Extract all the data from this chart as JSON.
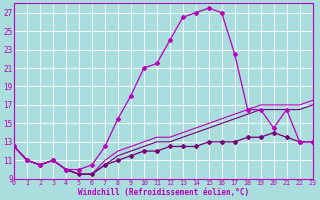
{
  "xlabel": "Windchill (Refroidissement éolien,°C)",
  "bg_color": "#aadddd",
  "grid_color": "#ffffff",
  "line_color": "#bb00bb",
  "line_color_dark": "#770077",
  "xmin": 0,
  "xmax": 23,
  "ymin": 9,
  "ymax": 28,
  "yticks": [
    9,
    11,
    13,
    15,
    17,
    19,
    21,
    23,
    25,
    27
  ],
  "xticks": [
    0,
    1,
    2,
    3,
    4,
    5,
    6,
    7,
    8,
    9,
    10,
    11,
    12,
    13,
    14,
    15,
    16,
    17,
    18,
    19,
    20,
    21,
    22,
    23
  ],
  "curve1_x": [
    0,
    1,
    2,
    3,
    4,
    5,
    6,
    7,
    8,
    9,
    10,
    11,
    12,
    13,
    14,
    15,
    16,
    17,
    18,
    19,
    20,
    21,
    22,
    23
  ],
  "curve1_y": [
    12.5,
    11.0,
    10.5,
    11.0,
    10.0,
    10.0,
    10.5,
    12.5,
    15.5,
    18.0,
    21.0,
    21.5,
    24.0,
    26.5,
    27.0,
    27.5,
    27.0,
    22.5,
    16.5,
    16.5,
    14.5,
    16.5,
    13.0,
    13.0
  ],
  "curve2_x": [
    0,
    1,
    2,
    3,
    4,
    5,
    6,
    7,
    8,
    9,
    10,
    11,
    12,
    13,
    14,
    15,
    16,
    17,
    18,
    19,
    20,
    21,
    22,
    23
  ],
  "curve2_y": [
    12.5,
    11.0,
    10.5,
    11.0,
    10.0,
    9.5,
    9.5,
    10.5,
    11.0,
    11.5,
    12.0,
    12.0,
    12.5,
    12.5,
    12.5,
    13.0,
    13.0,
    13.0,
    13.5,
    13.5,
    14.0,
    13.5,
    13.0,
    13.0
  ],
  "curve3_x": [
    0,
    1,
    2,
    3,
    4,
    5,
    6,
    7,
    8,
    9,
    10,
    11,
    12,
    13,
    14,
    15,
    16,
    17,
    18,
    19,
    20,
    21,
    22,
    23
  ],
  "curve3_y": [
    12.5,
    11.0,
    10.5,
    11.0,
    10.0,
    9.5,
    9.5,
    10.5,
    11.5,
    12.0,
    12.5,
    13.0,
    13.0,
    13.5,
    14.0,
    14.5,
    15.0,
    15.5,
    16.0,
    16.5,
    16.5,
    16.5,
    16.5,
    17.0
  ],
  "curve4_x": [
    0,
    1,
    2,
    3,
    4,
    5,
    6,
    7,
    8,
    9,
    10,
    11,
    12,
    13,
    14,
    15,
    16,
    17,
    18,
    19,
    20,
    21,
    22,
    23
  ],
  "curve4_y": [
    12.5,
    11.0,
    10.5,
    11.0,
    10.0,
    9.5,
    9.5,
    11.0,
    12.0,
    12.5,
    13.0,
    13.5,
    13.5,
    14.0,
    14.5,
    15.0,
    15.5,
    16.0,
    16.5,
    17.0,
    17.0,
    17.0,
    17.0,
    17.5
  ]
}
